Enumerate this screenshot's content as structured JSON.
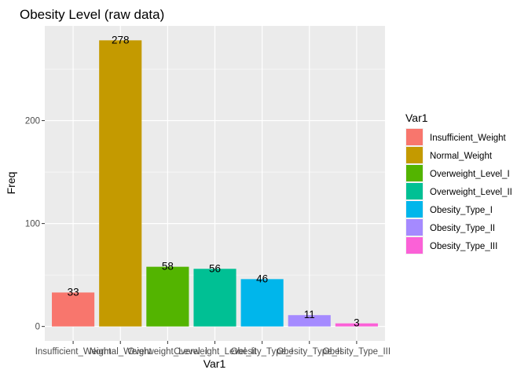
{
  "chart_data": {
    "type": "bar",
    "title": "Obesity Level (raw data)",
    "xlabel": "Var1",
    "ylabel": "Freq",
    "categories": [
      "Insufficient_Weight",
      "Normal_Weight",
      "Overweight_Level_I",
      "Overweight_Level_II",
      "Obesity_Type_I",
      "Obesity_Type_II",
      "Obesity_Type_III"
    ],
    "values": [
      33,
      278,
      58,
      56,
      46,
      11,
      3
    ],
    "colors": [
      "#F8766D",
      "#C49A00",
      "#53B400",
      "#00C094",
      "#00B6EB",
      "#A58AFF",
      "#FB61D7"
    ],
    "y_ticks": [
      0,
      100,
      200
    ],
    "ylim": [
      -14,
      292
    ],
    "legend": {
      "title": "Var1",
      "position": "right"
    },
    "background": "#EBEBEB",
    "grid": true
  }
}
